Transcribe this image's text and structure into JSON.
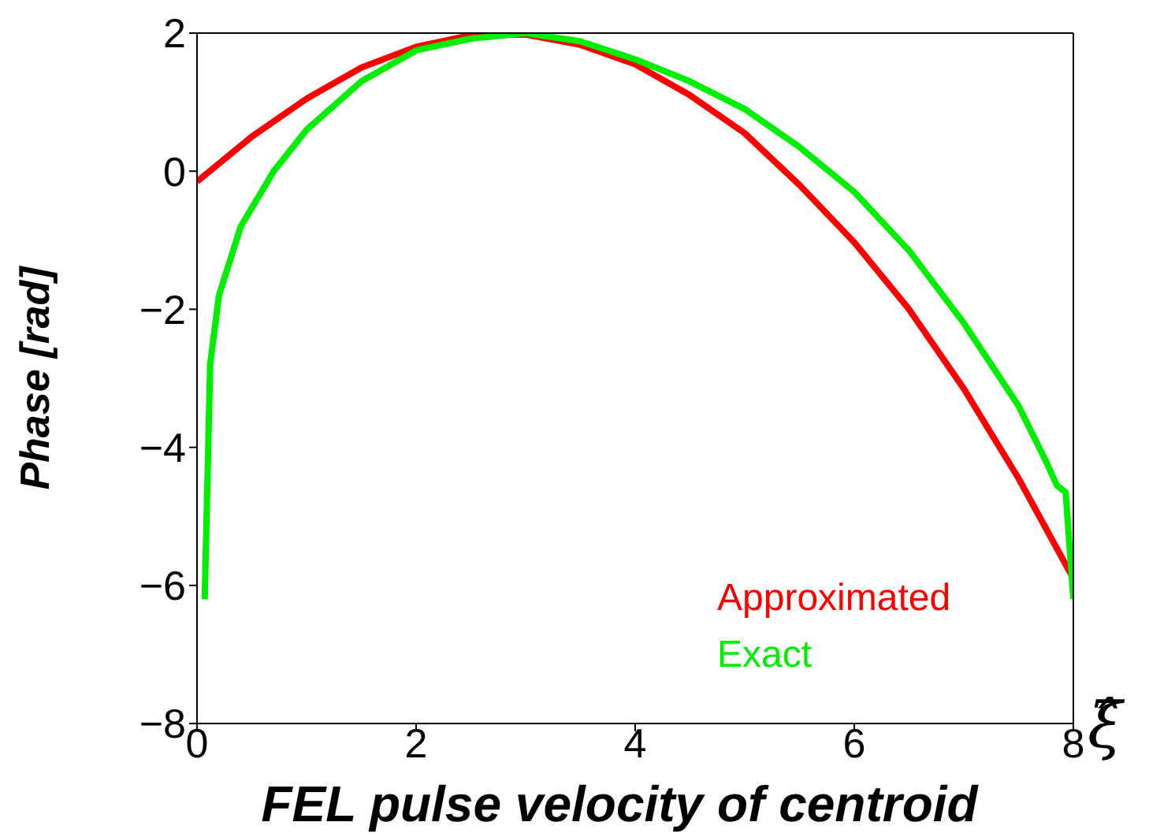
{
  "chart_data": {
    "type": "line",
    "xlabel": "FEL pulse velocity of centroid",
    "ylabel": "Phase [rad]",
    "annotations": [
      "ξ̂"
    ],
    "xlim": [
      0,
      8
    ],
    "xticks": [
      0,
      2,
      4,
      6,
      8
    ],
    "ylim": [
      -8,
      2
    ],
    "yticks": [
      -8,
      -6,
      -4,
      -2,
      0,
      2
    ],
    "grid": false,
    "legend": "bottom right",
    "marker": "none",
    "line_style": "solid",
    "series": [
      {
        "name": "Approximated",
        "color": "#ff0000",
        "x": [
          0,
          0.5,
          1,
          1.5,
          2,
          2.5,
          3,
          3.5,
          4,
          4.5,
          5,
          5.5,
          6,
          6.5,
          7,
          7.5,
          8
        ],
        "values": [
          -0.15,
          0.5,
          1.05,
          1.5,
          1.8,
          1.97,
          1.98,
          1.83,
          1.55,
          1.1,
          0.55,
          -0.2,
          -1.03,
          -2.0,
          -3.15,
          -4.45,
          -5.9
        ]
      },
      {
        "name": "Exact",
        "color": "#00ee00",
        "x": [
          0.07,
          0.12,
          0.2,
          0.4,
          0.7,
          1,
          1.5,
          2,
          2.5,
          3,
          3.5,
          4,
          4.5,
          5,
          5.5,
          6,
          6.5,
          7,
          7.5,
          7.75,
          7.85,
          7.93,
          8
        ],
        "values": [
          -6.2,
          -2.8,
          -1.8,
          -0.8,
          0.0,
          0.6,
          1.3,
          1.75,
          1.92,
          2.0,
          1.88,
          1.62,
          1.3,
          0.9,
          0.35,
          -0.3,
          -1.15,
          -2.2,
          -3.4,
          -4.2,
          -4.55,
          -4.65,
          -6.2
        ]
      }
    ]
  }
}
